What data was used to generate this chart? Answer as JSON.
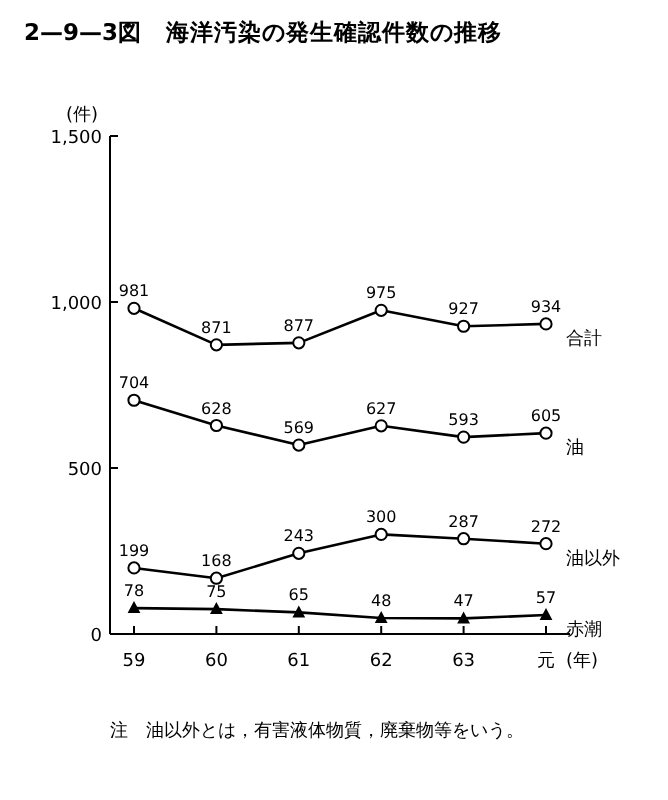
{
  "chart_data": {
    "type": "line",
    "title": "2—9—3図　海洋汚染の発生確認件数の推移",
    "ylabel": "(件)",
    "xlabel": "(年)",
    "categories": [
      "59",
      "60",
      "61",
      "62",
      "63",
      "元"
    ],
    "ylim": [
      0,
      1500
    ],
    "yticks": [
      0,
      500,
      {
        "value": 1000,
        "label": "1,000"
      },
      {
        "value": 1500,
        "label": "1,500"
      }
    ],
    "grid": false,
    "data_labels": true,
    "series": [
      {
        "name": "合計",
        "color": "#000000",
        "marker": "circle",
        "values": [
          981,
          871,
          877,
          975,
          927,
          934
        ]
      },
      {
        "name": "油",
        "color": "#000000",
        "marker": "circle",
        "values": [
          704,
          628,
          569,
          627,
          593,
          605
        ]
      },
      {
        "name": "油以外",
        "color": "#000000",
        "marker": "circle",
        "values": [
          199,
          168,
          243,
          300,
          287,
          272
        ]
      },
      {
        "name": "赤潮",
        "color": "#000000",
        "marker": "triangle",
        "values": [
          78,
          75,
          65,
          48,
          47,
          57
        ]
      }
    ],
    "annotations": [
      "注　油以外とは，有害液体物質，廃棄物等をいう。"
    ]
  }
}
